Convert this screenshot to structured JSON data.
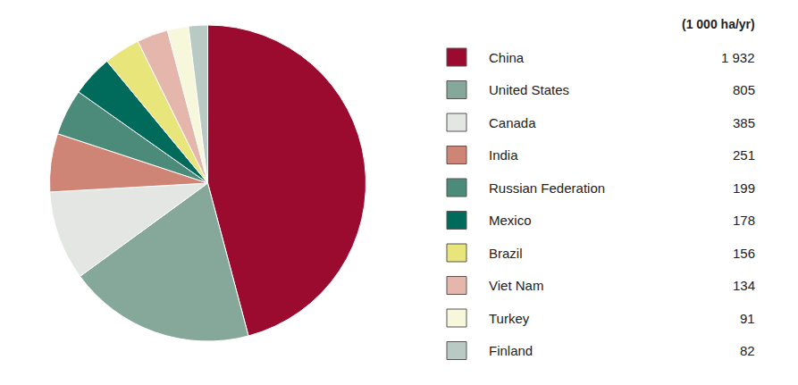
{
  "chart_data": {
    "type": "pie",
    "subtitle": "(1 000 ha/yr)",
    "categories": [
      "China",
      "United States",
      "Canada",
      "India",
      "Russian Federation",
      "Mexico",
      "Brazil",
      "Viet Nam",
      "Turkey",
      "Finland"
    ],
    "values": [
      1932,
      805,
      385,
      251,
      199,
      178,
      156,
      134,
      91,
      82
    ],
    "value_labels": [
      "1 932",
      "805",
      "385",
      "251",
      "199",
      "178",
      "156",
      "134",
      "91",
      "82"
    ],
    "colors": [
      "#9b0a2f",
      "#86a89a",
      "#e3e6e3",
      "#cf8576",
      "#4c8a79",
      "#006b5a",
      "#e8e57a",
      "#e5b7ac",
      "#f7f7dc",
      "#b9c9c4"
    ],
    "legend": "right",
    "data_labels": false
  }
}
